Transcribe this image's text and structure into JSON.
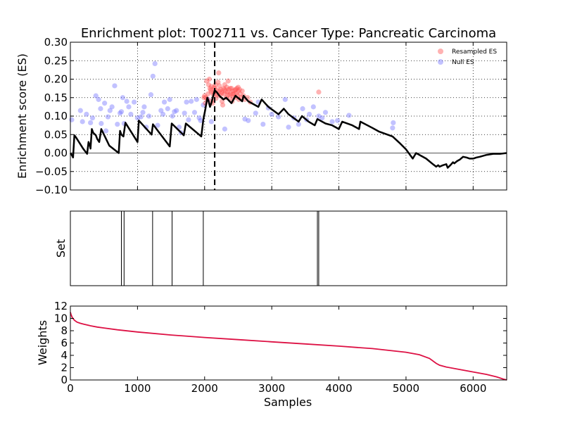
{
  "chart_data": [
    {
      "type": "line",
      "title": "Enrichment plot: T002711 vs. Cancer Type: Pancreatic Carcinoma",
      "ylabel": "Enrichment score (ES)",
      "xlim": [
        0,
        6500
      ],
      "ylim": [
        -0.1,
        0.3
      ],
      "yticks": [
        -0.1,
        -0.05,
        0.0,
        0.05,
        0.1,
        0.15,
        0.2,
        0.25,
        0.3
      ],
      "ytick_labels": [
        "−0.10",
        "−0.05",
        "0.00",
        "0.05",
        "0.10",
        "0.15",
        "0.20",
        "0.25",
        "0.30"
      ],
      "grid": true,
      "legend": "top-right",
      "legend_labels": [
        "Resampled ES",
        "Null ES"
      ],
      "colors": {
        "resampled": "#ff5555",
        "null": "#7777ff",
        "running": "#000000",
        "peak": "#000000"
      },
      "peak_x": 2150,
      "running_es": [
        [
          0,
          0.0
        ],
        [
          20,
          -0.005
        ],
        [
          40,
          -0.012
        ],
        [
          60,
          0.048
        ],
        [
          85,
          0.042
        ],
        [
          190,
          0.012
        ],
        [
          250,
          -0.002
        ],
        [
          270,
          0.03
        ],
        [
          290,
          0.02
        ],
        [
          300,
          0.012
        ],
        [
          320,
          0.065
        ],
        [
          340,
          0.055
        ],
        [
          380,
          0.048
        ],
        [
          400,
          0.038
        ],
        [
          430,
          0.03
        ],
        [
          460,
          0.065
        ],
        [
          540,
          0.035
        ],
        [
          580,
          0.02
        ],
        [
          720,
          0.0
        ],
        [
          740,
          0.06
        ],
        [
          760,
          0.05
        ],
        [
          790,
          0.045
        ],
        [
          820,
          0.082
        ],
        [
          1000,
          0.03
        ],
        [
          1020,
          0.088
        ],
        [
          1210,
          0.05
        ],
        [
          1230,
          0.078
        ],
        [
          1480,
          0.018
        ],
        [
          1510,
          0.08
        ],
        [
          1690,
          0.048
        ],
        [
          1720,
          0.08
        ],
        [
          1950,
          0.045
        ],
        [
          1980,
          0.09
        ],
        [
          2010,
          0.118
        ],
        [
          2040,
          0.15
        ],
        [
          2060,
          0.14
        ],
        [
          2080,
          0.125
        ],
        [
          2100,
          0.135
        ],
        [
          2150,
          0.17
        ],
        [
          2180,
          0.165
        ],
        [
          2220,
          0.155
        ],
        [
          2250,
          0.15
        ],
        [
          2280,
          0.145
        ],
        [
          2320,
          0.15
        ],
        [
          2400,
          0.135
        ],
        [
          2460,
          0.155
        ],
        [
          2560,
          0.14
        ],
        [
          2580,
          0.155
        ],
        [
          2650,
          0.14
        ],
        [
          2800,
          0.125
        ],
        [
          2850,
          0.145
        ],
        [
          2950,
          0.125
        ],
        [
          3100,
          0.105
        ],
        [
          3180,
          0.12
        ],
        [
          3250,
          0.105
        ],
        [
          3400,
          0.085
        ],
        [
          3450,
          0.1
        ],
        [
          3550,
          0.085
        ],
        [
          3640,
          0.075
        ],
        [
          3680,
          0.092
        ],
        [
          3800,
          0.08
        ],
        [
          3900,
          0.075
        ],
        [
          4000,
          0.065
        ],
        [
          4050,
          0.085
        ],
        [
          4200,
          0.075
        ],
        [
          4300,
          0.065
        ],
        [
          4320,
          0.085
        ],
        [
          4500,
          0.068
        ],
        [
          4600,
          0.058
        ],
        [
          4800,
          0.045
        ],
        [
          4900,
          0.028
        ],
        [
          5000,
          0.01
        ],
        [
          5100,
          -0.015
        ],
        [
          5150,
          0.0
        ],
        [
          5300,
          -0.015
        ],
        [
          5400,
          -0.03
        ],
        [
          5450,
          -0.037
        ],
        [
          5480,
          -0.033
        ],
        [
          5500,
          -0.037
        ],
        [
          5550,
          -0.033
        ],
        [
          5600,
          -0.03
        ],
        [
          5620,
          -0.04
        ],
        [
          5660,
          -0.033
        ],
        [
          5700,
          -0.025
        ],
        [
          5720,
          -0.028
        ],
        [
          5760,
          -0.022
        ],
        [
          5800,
          -0.018
        ],
        [
          5850,
          -0.01
        ],
        [
          5900,
          -0.012
        ],
        [
          5950,
          -0.015
        ],
        [
          6000,
          -0.015
        ],
        [
          6050,
          -0.012
        ],
        [
          6100,
          -0.01
        ],
        [
          6200,
          -0.005
        ],
        [
          6300,
          -0.002
        ],
        [
          6400,
          -0.002
        ],
        [
          6500,
          0.0
        ]
      ],
      "null_es": [
        [
          20,
          0.09
        ],
        [
          150,
          0.115
        ],
        [
          180,
          0.085
        ],
        [
          240,
          0.105
        ],
        [
          300,
          0.082
        ],
        [
          330,
          0.095
        ],
        [
          380,
          0.155
        ],
        [
          420,
          0.145
        ],
        [
          450,
          0.12
        ],
        [
          460,
          0.08
        ],
        [
          510,
          0.135
        ],
        [
          530,
          0.06
        ],
        [
          560,
          0.098
        ],
        [
          590,
          0.115
        ],
        [
          620,
          0.125
        ],
        [
          660,
          0.182
        ],
        [
          700,
          0.078
        ],
        [
          740,
          0.108
        ],
        [
          760,
          0.112
        ],
        [
          780,
          0.15
        ],
        [
          800,
          0.08
        ],
        [
          840,
          0.14
        ],
        [
          870,
          0.125
        ],
        [
          900,
          0.105
        ],
        [
          950,
          0.138
        ],
        [
          1000,
          0.095
        ],
        [
          1050,
          0.098
        ],
        [
          1080,
          0.11
        ],
        [
          1100,
          0.125
        ],
        [
          1130,
          0.07
        ],
        [
          1170,
          0.1
        ],
        [
          1200,
          0.158
        ],
        [
          1230,
          0.208
        ],
        [
          1260,
          0.242
        ],
        [
          1300,
          0.075
        ],
        [
          1350,
          0.115
        ],
        [
          1380,
          0.105
        ],
        [
          1400,
          0.138
        ],
        [
          1450,
          0.12
        ],
        [
          1480,
          0.145
        ],
        [
          1520,
          0.1
        ],
        [
          1550,
          0.112
        ],
        [
          1580,
          0.115
        ],
        [
          1620,
          0.07
        ],
        [
          1650,
          0.055
        ],
        [
          1700,
          0.108
        ],
        [
          1730,
          0.138
        ],
        [
          1760,
          0.09
        ],
        [
          1800,
          0.14
        ],
        [
          1850,
          0.11
        ],
        [
          1880,
          0.145
        ],
        [
          1920,
          0.095
        ],
        [
          1940,
          0.088
        ],
        [
          1980,
          0.13
        ],
        [
          2050,
          0.145
        ],
        [
          2100,
          0.085
        ],
        [
          2300,
          0.065
        ],
        [
          2600,
          0.092
        ],
        [
          2650,
          0.088
        ],
        [
          2760,
          0.108
        ],
        [
          2800,
          0.138
        ],
        [
          2870,
          0.078
        ],
        [
          2950,
          0.122
        ],
        [
          3000,
          0.105
        ],
        [
          3100,
          0.098
        ],
        [
          3200,
          0.145
        ],
        [
          3250,
          0.07
        ],
        [
          3330,
          0.095
        ],
        [
          3400,
          0.078
        ],
        [
          3460,
          0.12
        ],
        [
          3520,
          0.09
        ],
        [
          3560,
          0.105
        ],
        [
          3620,
          0.125
        ],
        [
          3700,
          0.1
        ],
        [
          3750,
          0.095
        ],
        [
          3800,
          0.11
        ],
        [
          3900,
          0.085
        ],
        [
          3980,
          0.088
        ],
        [
          4150,
          0.102
        ],
        [
          4800,
          0.068
        ],
        [
          4810,
          0.082
        ]
      ],
      "resampled_es": [
        [
          1990,
          0.15
        ],
        [
          2000,
          0.155
        ],
        [
          2010,
          0.135
        ],
        [
          2020,
          0.15
        ],
        [
          2030,
          0.195
        ],
        [
          2040,
          0.145
        ],
        [
          2050,
          0.16
        ],
        [
          2060,
          0.185
        ],
        [
          2070,
          0.2
        ],
        [
          2080,
          0.175
        ],
        [
          2090,
          0.17
        ],
        [
          2100,
          0.18
        ],
        [
          2110,
          0.142
        ],
        [
          2120,
          0.135
        ],
        [
          2130,
          0.158
        ],
        [
          2140,
          0.165
        ],
        [
          2150,
          0.175
        ],
        [
          2160,
          0.185
        ],
        [
          2170,
          0.148
        ],
        [
          2180,
          0.17
        ],
        [
          2190,
          0.16
        ],
        [
          2200,
          0.192
        ],
        [
          2210,
          0.217
        ],
        [
          2220,
          0.182
        ],
        [
          2230,
          0.155
        ],
        [
          2240,
          0.172
        ],
        [
          2250,
          0.165
        ],
        [
          2260,
          0.14
        ],
        [
          2270,
          0.13
        ],
        [
          2280,
          0.175
        ],
        [
          2290,
          0.16
        ],
        [
          2300,
          0.185
        ],
        [
          2310,
          0.168
        ],
        [
          2320,
          0.15
        ],
        [
          2330,
          0.178
        ],
        [
          2340,
          0.165
        ],
        [
          2350,
          0.195
        ],
        [
          2360,
          0.172
        ],
        [
          2370,
          0.158
        ],
        [
          2380,
          0.15
        ],
        [
          2390,
          0.162
        ],
        [
          2400,
          0.175
        ],
        [
          2410,
          0.14
        ],
        [
          2420,
          0.168
        ],
        [
          2430,
          0.152
        ],
        [
          2440,
          0.16
        ],
        [
          2450,
          0.17
        ],
        [
          2460,
          0.15
        ],
        [
          2470,
          0.162
        ],
        [
          2480,
          0.175
        ],
        [
          2490,
          0.155
        ],
        [
          2500,
          0.168
        ],
        [
          2510,
          0.145
        ],
        [
          2520,
          0.172
        ],
        [
          2530,
          0.16
        ],
        [
          2540,
          0.15
        ],
        [
          2560,
          0.168
        ],
        [
          2580,
          0.155
        ],
        [
          2600,
          0.145
        ],
        [
          2640,
          0.15
        ],
        [
          2680,
          0.138
        ],
        [
          2100,
          0.165
        ],
        [
          2140,
          0.178
        ],
        [
          2180,
          0.158
        ],
        [
          2220,
          0.168
        ],
        [
          2260,
          0.162
        ],
        [
          2300,
          0.172
        ],
        [
          2340,
          0.158
        ],
        [
          2380,
          0.175
        ],
        [
          2420,
          0.16
        ],
        [
          2460,
          0.172
        ],
        [
          2500,
          0.178
        ],
        [
          3700,
          0.165
        ]
      ]
    },
    {
      "type": "line",
      "ylabel": "Set",
      "xlim": [
        0,
        6500
      ],
      "hits": [
        760,
        800,
        1225,
        1515,
        1980,
        3680,
        3700
      ]
    },
    {
      "type": "line",
      "xlabel": "Samples",
      "ylabel": "Weights",
      "xlim": [
        0,
        6500
      ],
      "ylim": [
        0,
        12
      ],
      "xticks": [
        0,
        1000,
        2000,
        3000,
        4000,
        5000,
        6000
      ],
      "yticks": [
        0,
        2,
        4,
        6,
        8,
        10,
        12
      ],
      "color": "#dd1144",
      "weights": [
        [
          0,
          11.0
        ],
        [
          10,
          10.6
        ],
        [
          30,
          10.1
        ],
        [
          60,
          9.7
        ],
        [
          100,
          9.4
        ],
        [
          150,
          9.2
        ],
        [
          200,
          9.05
        ],
        [
          300,
          8.8
        ],
        [
          400,
          8.6
        ],
        [
          500,
          8.45
        ],
        [
          700,
          8.15
        ],
        [
          1000,
          7.8
        ],
        [
          1500,
          7.3
        ],
        [
          2000,
          6.9
        ],
        [
          2500,
          6.55
        ],
        [
          3000,
          6.2
        ],
        [
          3500,
          5.85
        ],
        [
          4000,
          5.5
        ],
        [
          4500,
          5.1
        ],
        [
          5000,
          4.5
        ],
        [
          5200,
          4.1
        ],
        [
          5350,
          3.5
        ],
        [
          5450,
          2.7
        ],
        [
          5500,
          2.4
        ],
        [
          5600,
          2.1
        ],
        [
          5800,
          1.7
        ],
        [
          6000,
          1.3
        ],
        [
          6200,
          0.9
        ],
        [
          6350,
          0.5
        ],
        [
          6450,
          0.15
        ],
        [
          6500,
          0.0
        ]
      ]
    }
  ]
}
